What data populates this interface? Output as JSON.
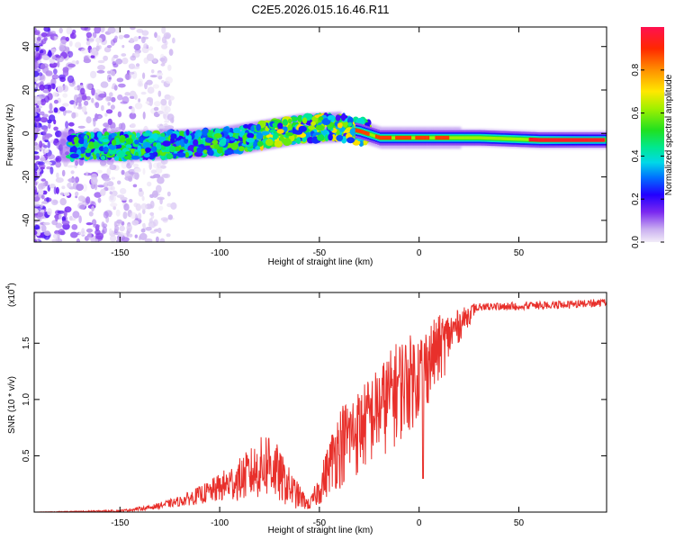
{
  "title": "C2E5.2026.015.16.46.R11",
  "colors": {
    "trace": "#e8302b",
    "axis": "#000000",
    "background": "#ffffff"
  },
  "chart_data": [
    {
      "type": "heatmap",
      "name": "spectrogram",
      "xlabel": "Height of straight line (km)",
      "ylabel": "Frequency (Hz)",
      "xlim": [
        -193,
        94
      ],
      "ylim": [
        -50,
        49
      ],
      "xticks": [
        -150,
        -100,
        -50,
        0,
        50
      ],
      "yticks": [
        -40,
        -20,
        0,
        20,
        40
      ],
      "colorbar": {
        "label": "Normalized spectral amplitude",
        "range": [
          0.0,
          1.0
        ],
        "ticks": [
          0.0,
          0.2,
          0.4,
          0.6,
          0.8
        ]
      },
      "ridge": {
        "description_points": [
          {
            "x": -170,
            "y": -6
          },
          {
            "x": -150,
            "y": -6
          },
          {
            "x": -120,
            "y": -5
          },
          {
            "x": -100,
            "y": -4
          },
          {
            "x": -80,
            "y": -1
          },
          {
            "x": -60,
            "y": 2
          },
          {
            "x": -40,
            "y": 3
          },
          {
            "x": -30,
            "y": 1
          },
          {
            "x": -20,
            "y": -2
          },
          {
            "x": 0,
            "y": -2
          },
          {
            "x": 30,
            "y": -2
          },
          {
            "x": 60,
            "y": -3
          },
          {
            "x": 94,
            "y": -3
          }
        ]
      }
    },
    {
      "type": "line",
      "name": "snr",
      "xlabel": "Height of straight line (km)",
      "ylabel": "SNR (10 * v/v)",
      "multiplier": "(x10",
      "multiplier_exp": "4",
      "multiplier_close": ")",
      "xlim": [
        -193,
        94
      ],
      "ylim": [
        0,
        1.95
      ],
      "xticks": [
        -150,
        -100,
        -50,
        0,
        50
      ],
      "yticks": [
        0.5,
        1.0,
        1.5
      ],
      "ytick_labels": [
        "0.5",
        "1.0",
        "1.5"
      ],
      "envelope": {
        "x": [
          -193,
          -150,
          -135,
          -120,
          -105,
          -90,
          -80,
          -75,
          -70,
          -62,
          -55,
          -50,
          -45,
          -40,
          -30,
          -20,
          -10,
          0,
          10,
          20,
          28,
          40,
          60,
          80,
          94
        ],
        "lo": [
          0.0,
          0.0,
          0.02,
          0.05,
          0.08,
          0.1,
          0.12,
          0.12,
          0.08,
          0.03,
          0.02,
          0.06,
          0.15,
          0.2,
          0.3,
          0.45,
          0.6,
          0.8,
          1.1,
          1.5,
          1.75,
          1.78,
          1.8,
          1.82,
          1.8
        ],
        "hi": [
          0.0,
          0.02,
          0.06,
          0.14,
          0.28,
          0.48,
          0.65,
          0.78,
          0.55,
          0.3,
          0.1,
          0.35,
          0.65,
          0.95,
          1.1,
          1.3,
          1.55,
          1.6,
          1.75,
          1.8,
          1.86,
          1.86,
          1.87,
          1.88,
          1.9
        ]
      }
    }
  ]
}
